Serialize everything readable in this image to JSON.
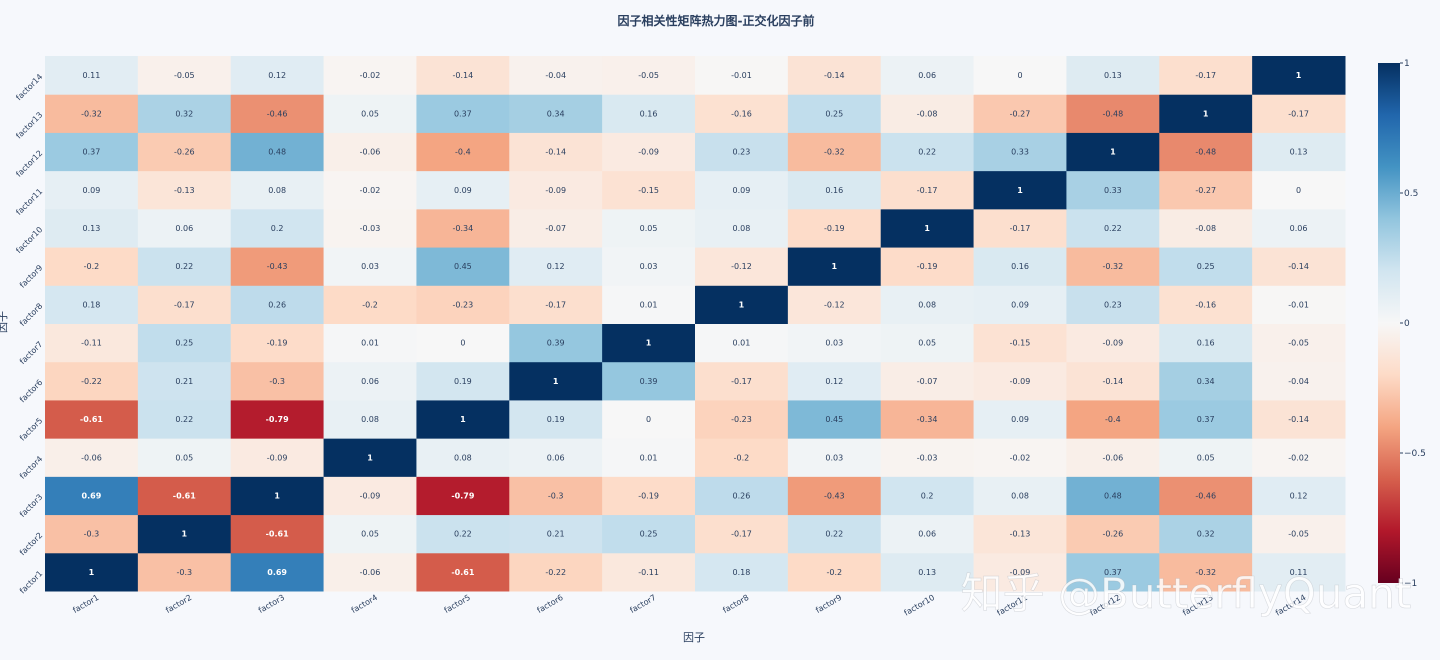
{
  "chart_data": {
    "type": "heatmap",
    "title": "因子相关性矩阵热力图-正交化因子前",
    "xlabel": "因子",
    "ylabel": "因子",
    "x": [
      "factor1",
      "factor2",
      "factor3",
      "factor4",
      "factor5",
      "factor6",
      "factor7",
      "factor8",
      "factor9",
      "factor10",
      "factor11",
      "factor12",
      "factor13",
      "factor14"
    ],
    "y": [
      "factor1",
      "factor2",
      "factor3",
      "factor4",
      "factor5",
      "factor6",
      "factor7",
      "factor8",
      "factor9",
      "factor10",
      "factor11",
      "factor12",
      "factor13",
      "factor14"
    ],
    "z": [
      [
        1,
        -0.3,
        0.69,
        -0.06,
        -0.61,
        -0.22,
        -0.11,
        0.18,
        -0.2,
        0.13,
        -0.09,
        0.37,
        -0.32,
        0.11
      ],
      [
        -0.3,
        1,
        -0.61,
        0.05,
        0.22,
        0.21,
        0.25,
        -0.17,
        0.22,
        0.06,
        -0.13,
        -0.26,
        0.32,
        -0.05
      ],
      [
        0.69,
        -0.61,
        1,
        -0.09,
        -0.79,
        -0.3,
        -0.19,
        0.26,
        -0.43,
        0.2,
        0.08,
        0.48,
        -0.46,
        0.12
      ],
      [
        -0.06,
        0.05,
        -0.09,
        1,
        0.08,
        0.06,
        0.01,
        -0.2,
        0.03,
        -0.03,
        -0.02,
        -0.06,
        0.05,
        -0.02
      ],
      [
        -0.61,
        0.22,
        -0.79,
        0.08,
        1,
        0.19,
        0,
        -0.23,
        0.45,
        -0.34,
        0.09,
        -0.4,
        0.37,
        -0.14
      ],
      [
        -0.22,
        0.21,
        -0.3,
        0.06,
        0.19,
        1,
        0.39,
        -0.17,
        0.12,
        -0.07,
        -0.09,
        -0.14,
        0.34,
        -0.04
      ],
      [
        -0.11,
        0.25,
        -0.19,
        0.01,
        0,
        0.39,
        1,
        0.01,
        0.03,
        0.05,
        -0.15,
        -0.09,
        0.16,
        -0.05
      ],
      [
        0.18,
        -0.17,
        0.26,
        -0.2,
        -0.23,
        -0.17,
        0.01,
        1,
        -0.12,
        0.08,
        0.09,
        0.23,
        -0.16,
        -0.01
      ],
      [
        -0.2,
        0.22,
        -0.43,
        0.03,
        0.45,
        0.12,
        0.03,
        -0.12,
        1,
        -0.19,
        0.16,
        -0.32,
        0.25,
        -0.14
      ],
      [
        0.13,
        0.06,
        0.2,
        -0.03,
        -0.34,
        -0.07,
        0.05,
        0.08,
        -0.19,
        1,
        -0.17,
        0.22,
        -0.08,
        0.06
      ],
      [
        0.09,
        -0.13,
        0.08,
        -0.02,
        0.09,
        -0.09,
        -0.15,
        0.09,
        0.16,
        -0.17,
        1,
        0.33,
        -0.27,
        0
      ],
      [
        0.37,
        -0.26,
        0.48,
        -0.06,
        -0.4,
        -0.14,
        -0.09,
        0.23,
        -0.32,
        0.22,
        0.33,
        1,
        -0.48,
        0.13
      ],
      [
        -0.32,
        0.32,
        -0.46,
        0.05,
        0.37,
        0.34,
        0.16,
        -0.16,
        0.25,
        -0.08,
        -0.27,
        -0.48,
        1,
        -0.17
      ],
      [
        0.11,
        -0.05,
        0.12,
        -0.02,
        -0.14,
        -0.04,
        -0.05,
        -0.01,
        -0.14,
        0.06,
        0,
        0.13,
        -0.17,
        1
      ]
    ],
    "zlim": [
      -1,
      1
    ],
    "colorscale": "RdBu",
    "colorscale_stops": [
      "#67001f",
      "#b2182b",
      "#d6604d",
      "#f4a582",
      "#fddbc7",
      "#f7f7f7",
      "#d1e5f0",
      "#92c5de",
      "#4393c3",
      "#2166ac",
      "#053061"
    ],
    "colorbar_ticks": [
      {
        "value": 1,
        "label": "1"
      },
      {
        "value": 0.5,
        "label": "0.5"
      },
      {
        "value": 0,
        "label": "0"
      },
      {
        "value": -0.5,
        "label": "−0.5"
      },
      {
        "value": -1,
        "label": "−1"
      }
    ]
  },
  "watermark": "知乎 @ButterflyQuant"
}
